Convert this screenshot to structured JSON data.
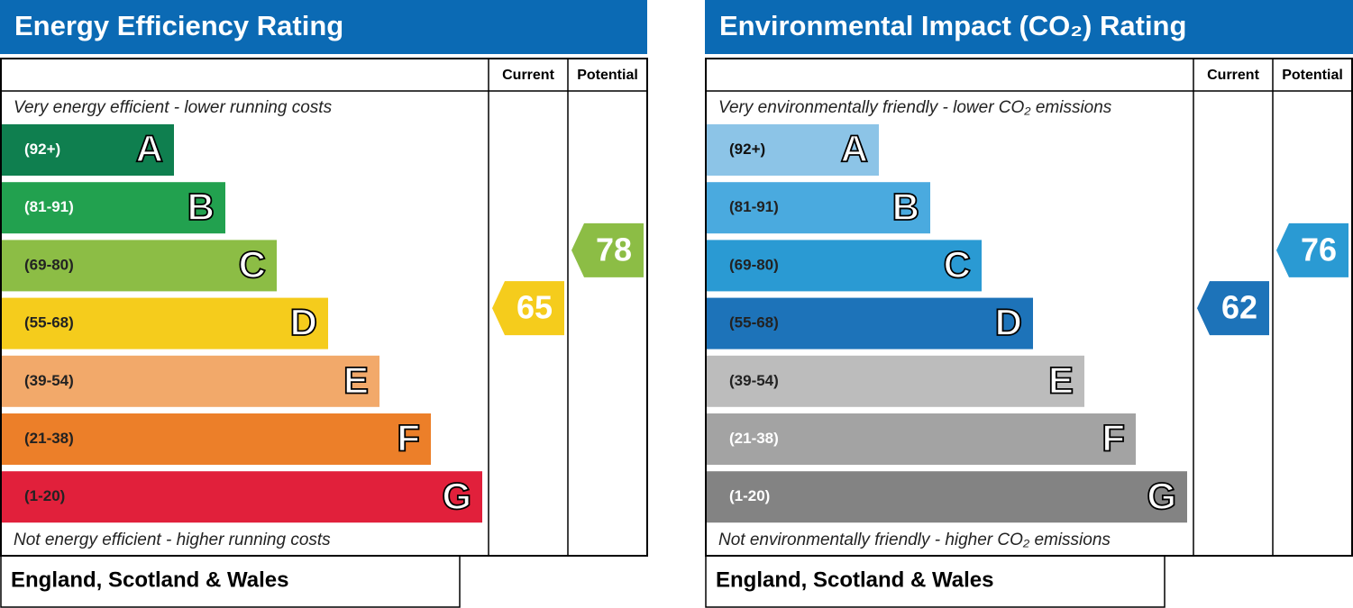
{
  "chart_data": [
    {
      "type": "epc",
      "title": "Energy Efficiency Rating",
      "columns": [
        "Current",
        "Potential"
      ],
      "top_label": "Very energy efficient - lower running costs",
      "bottom_label": "Not energy efficient - higher running costs",
      "categories": [
        "A",
        "B",
        "C",
        "D",
        "E",
        "F",
        "G"
      ],
      "ranges": [
        "(92+)",
        "(81-91)",
        "(69-80)",
        "(55-68)",
        "(39-54)",
        "(21-38)",
        "(1-20)"
      ],
      "colors": [
        "#0f7f4f",
        "#22a14f",
        "#8cbd45",
        "#f5cc1c",
        "#f2a96a",
        "#ec7f29",
        "#e1203b"
      ],
      "text_colors": [
        "#ffffff",
        "#ffffff",
        "#222222",
        "#222222",
        "#222222",
        "#222222",
        "#222222"
      ],
      "current": 65,
      "potential": 78,
      "footer": "England, Scotland & Wales"
    },
    {
      "type": "epc",
      "title": "Environmental Impact (CO₂) Rating",
      "columns": [
        "Current",
        "Potential"
      ],
      "top_label": "Very environmentally friendly - lower CO₂ emissions",
      "bottom_label": "Not environmentally friendly - higher CO₂ emissions",
      "categories": [
        "A",
        "B",
        "C",
        "D",
        "E",
        "F",
        "G"
      ],
      "ranges": [
        "(92+)",
        "(81-91)",
        "(69-80)",
        "(55-68)",
        "(39-54)",
        "(21-38)",
        "(1-20)"
      ],
      "colors": [
        "#8cc4e7",
        "#4aaadf",
        "#2a9ad3",
        "#1d73b9",
        "#bcbcbc",
        "#a3a3a3",
        "#838383"
      ],
      "text_colors": [
        "#111111",
        "#222222",
        "#222222",
        "#222222",
        "#222222",
        "#ffffff",
        "#ffffff"
      ],
      "current": 62,
      "potential": 76,
      "footer": "England, Scotland & Wales"
    }
  ]
}
